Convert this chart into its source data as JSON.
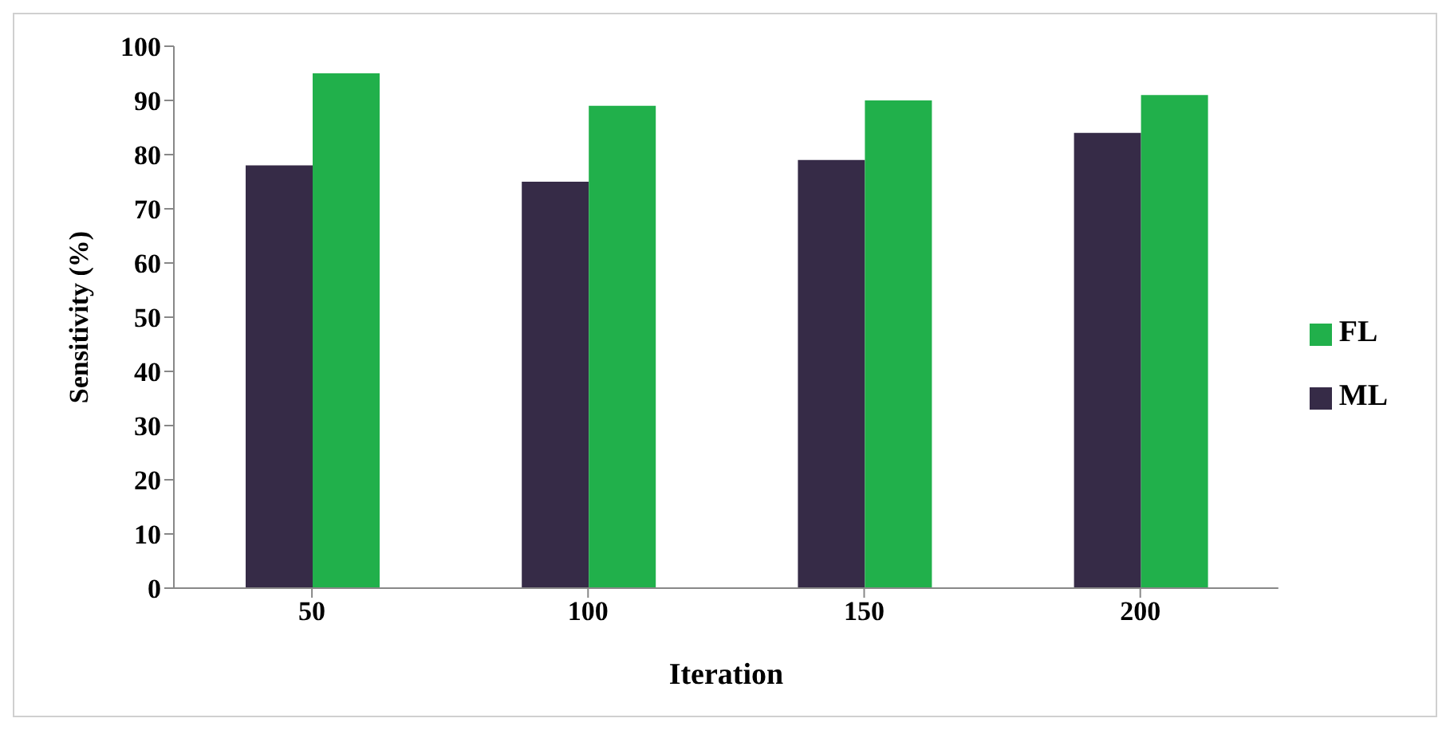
{
  "chart_data": {
    "type": "bar",
    "xlabel": "Iteration",
    "ylabel": "Sensitivity (%)",
    "categories": [
      "50",
      "100",
      "150",
      "200"
    ],
    "series": [
      {
        "name": "ML",
        "color": "#362b47",
        "values": [
          78,
          75,
          79,
          84
        ]
      },
      {
        "name": "FL",
        "color": "#21b04b",
        "values": [
          95,
          89,
          90,
          91
        ]
      }
    ],
    "ylim": [
      0,
      100
    ],
    "yticks": [
      0,
      10,
      20,
      30,
      40,
      50,
      60,
      70,
      80,
      90,
      100
    ],
    "grid": false,
    "legend": "right"
  }
}
